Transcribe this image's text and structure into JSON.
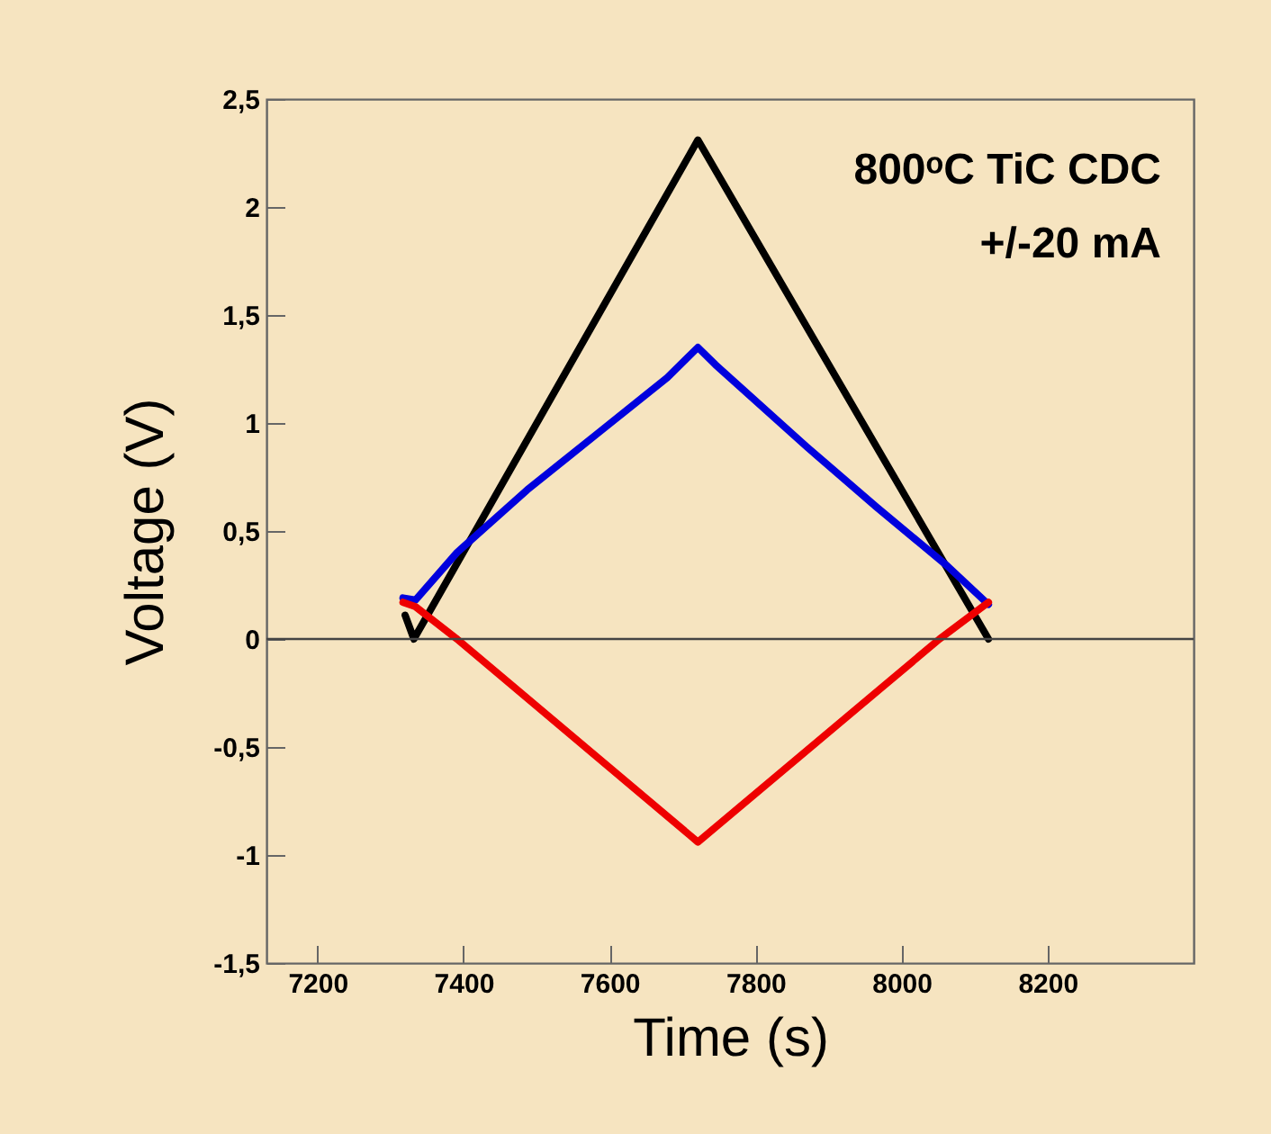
{
  "chart_data": {
    "type": "line",
    "xlabel": "Time (s)",
    "ylabel": "Voltage (V)",
    "annotations": [
      "800ᵒC TiC CDC",
      "+/-20 mA"
    ],
    "xlim": [
      7130,
      8400
    ],
    "xticks": [
      7200,
      7400,
      7600,
      7800,
      8000,
      8200
    ],
    "ylim": [
      -1.5,
      2.5
    ],
    "yticks": [
      {
        "value": -1.5,
        "label": "-1,5"
      },
      -1,
      {
        "value": -0.5,
        "label": "-0,5"
      },
      0,
      {
        "value": 0.5,
        "label": "0,5"
      },
      1,
      {
        "value": 1.5,
        "label": "1,5"
      },
      2,
      {
        "value": 2.5,
        "label": "2,5"
      }
    ],
    "grid": false,
    "legend": false,
    "marker": "none",
    "line_style": "solid",
    "ref_lines": [
      {
        "axis": "y",
        "value": 0,
        "color": "#444444"
      }
    ],
    "series": [
      {
        "color": "#000000",
        "x": [
          7320,
          7332,
          7721,
          8119
        ],
        "values": [
          0.11,
          0,
          2.31,
          0
        ]
      },
      {
        "color": "#0000dd",
        "x": [
          7317,
          7334,
          7391,
          7487,
          7583,
          7679,
          7721,
          7745,
          7870,
          7966,
          8062,
          8119
        ],
        "values": [
          0.19,
          0.18,
          0.4,
          0.69,
          0.95,
          1.21,
          1.35,
          1.27,
          0.89,
          0.61,
          0.34,
          0.16
        ]
      },
      {
        "color": "#ee0000",
        "x": [
          7317,
          7334,
          7391,
          7721,
          8052,
          8119
        ],
        "values": [
          0.17,
          0.15,
          0,
          -0.94,
          0,
          0.17
        ]
      }
    ]
  }
}
